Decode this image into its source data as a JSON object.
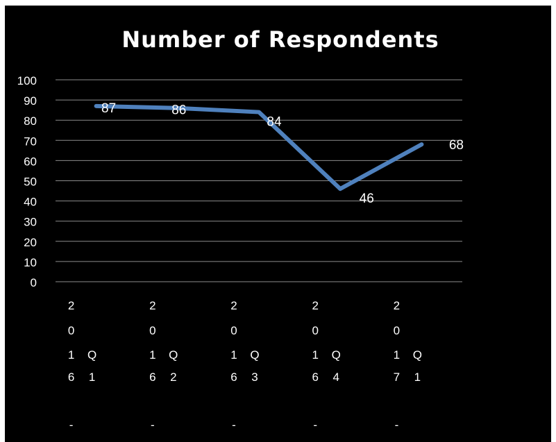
{
  "colors": {
    "background": "#000000",
    "gridline": "#8c8c8c",
    "series": "#4f81bd",
    "text": "#ffffff"
  },
  "chart_data": {
    "type": "line",
    "title": "Number of Respondents",
    "xlabel": "",
    "ylabel": "",
    "ylim": [
      0,
      100
    ],
    "yticks": [
      "0",
      "10",
      "20",
      "30",
      "40",
      "50",
      "60",
      "70",
      "80",
      "90",
      "100"
    ],
    "grid": true,
    "legend": "none",
    "categories": [
      "2016 - Q1",
      "2016 - Q2",
      "2016 - Q3",
      "2016 - Q4",
      "2017 - Q1"
    ],
    "category_label_columns": [
      [
        [
          "2",
          "0",
          "1",
          "6",
          "-"
        ],
        [
          "Q",
          "1"
        ]
      ],
      [
        [
          "2",
          "0",
          "1",
          "6",
          "-"
        ],
        [
          "Q",
          "2"
        ]
      ],
      [
        [
          "2",
          "0",
          "1",
          "6",
          "-"
        ],
        [
          "Q",
          "3"
        ]
      ],
      [
        [
          "2",
          "0",
          "1",
          "6",
          "-"
        ],
        [
          "Q",
          "4"
        ]
      ],
      [
        [
          "2",
          "0",
          "1",
          "7",
          "-"
        ],
        [
          "Q",
          "1"
        ]
      ]
    ],
    "series": [
      {
        "values": [
          87,
          86,
          84,
          46,
          68
        ]
      }
    ],
    "data_labels": [
      "87",
      "86",
      "84",
      "46",
      "68"
    ]
  }
}
